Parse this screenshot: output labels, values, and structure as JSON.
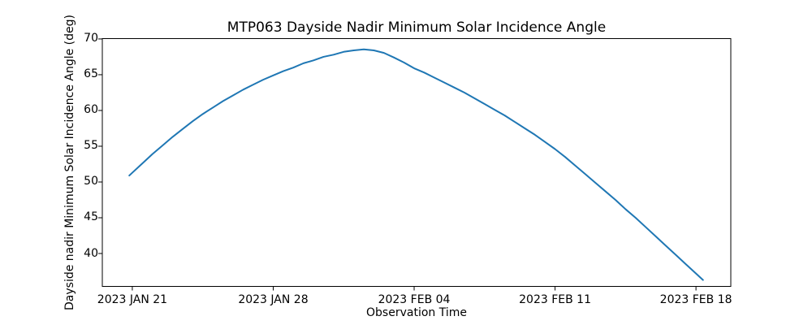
{
  "chart_data": {
    "type": "line",
    "title": "MTP063 Dayside Nadir Minimum Solar Incidence Angle",
    "xlabel": "Observation Time",
    "ylabel": "Dayside nadir Minimum Solar Incidence Angle (deg)",
    "background": "#ffffff",
    "grid": false,
    "legend": null,
    "line_color": "#1f77b4",
    "axis_color": "#000000",
    "x_unit": "days since 2023 JAN 21",
    "xlim_days": [
      -1.49,
      29.73
    ],
    "ylim": [
      35.4,
      70.05
    ],
    "x_ticks": [
      {
        "day": 0,
        "label": "2023 JAN 21"
      },
      {
        "day": 7,
        "label": "2023 JAN 28"
      },
      {
        "day": 14,
        "label": "2023 FEB 04"
      },
      {
        "day": 21,
        "label": "2023 FEB 11"
      },
      {
        "day": 28,
        "label": "2023 FEB 18"
      }
    ],
    "y_ticks": [
      70,
      65,
      60,
      55,
      50,
      45,
      40
    ],
    "series": [
      {
        "name": "dayside-nadir-min-solar-incidence-angle",
        "points": [
          [
            -0.15,
            50.9
          ],
          [
            0,
            51.3
          ],
          [
            0.5,
            52.6
          ],
          [
            1,
            53.9
          ],
          [
            1.5,
            55.1
          ],
          [
            2,
            56.3
          ],
          [
            2.5,
            57.4
          ],
          [
            3,
            58.5
          ],
          [
            3.5,
            59.5
          ],
          [
            4,
            60.4
          ],
          [
            4.5,
            61.3
          ],
          [
            5,
            62.1
          ],
          [
            5.5,
            62.9
          ],
          [
            6,
            63.6
          ],
          [
            6.5,
            64.3
          ],
          [
            7,
            64.9
          ],
          [
            7.5,
            65.5
          ],
          [
            8,
            66.0
          ],
          [
            8.5,
            66.6
          ],
          [
            9,
            67.0
          ],
          [
            9.5,
            67.5
          ],
          [
            10,
            67.8
          ],
          [
            10.5,
            68.2
          ],
          [
            11,
            68.4
          ],
          [
            11.5,
            68.55
          ],
          [
            12,
            68.4
          ],
          [
            12.5,
            68.05
          ],
          [
            13,
            67.4
          ],
          [
            13.5,
            66.7
          ],
          [
            14,
            65.9
          ],
          [
            14.5,
            65.3
          ],
          [
            15,
            64.6
          ],
          [
            15.5,
            63.9
          ],
          [
            16,
            63.2
          ],
          [
            16.5,
            62.5
          ],
          [
            17,
            61.7
          ],
          [
            17.5,
            60.9
          ],
          [
            18,
            60.1
          ],
          [
            18.5,
            59.3
          ],
          [
            19,
            58.4
          ],
          [
            19.5,
            57.5
          ],
          [
            20,
            56.6
          ],
          [
            20.5,
            55.6
          ],
          [
            21,
            54.6
          ],
          [
            21.5,
            53.5
          ],
          [
            22,
            52.3
          ],
          [
            22.5,
            51.1
          ],
          [
            23,
            49.9
          ],
          [
            23.5,
            48.7
          ],
          [
            24,
            47.5
          ],
          [
            24.5,
            46.2
          ],
          [
            25,
            45.0
          ],
          [
            25.5,
            43.7
          ],
          [
            26,
            42.4
          ],
          [
            26.5,
            41.1
          ],
          [
            27,
            39.8
          ],
          [
            27.5,
            38.5
          ],
          [
            28,
            37.2
          ],
          [
            28.35,
            36.3
          ]
        ]
      }
    ]
  }
}
